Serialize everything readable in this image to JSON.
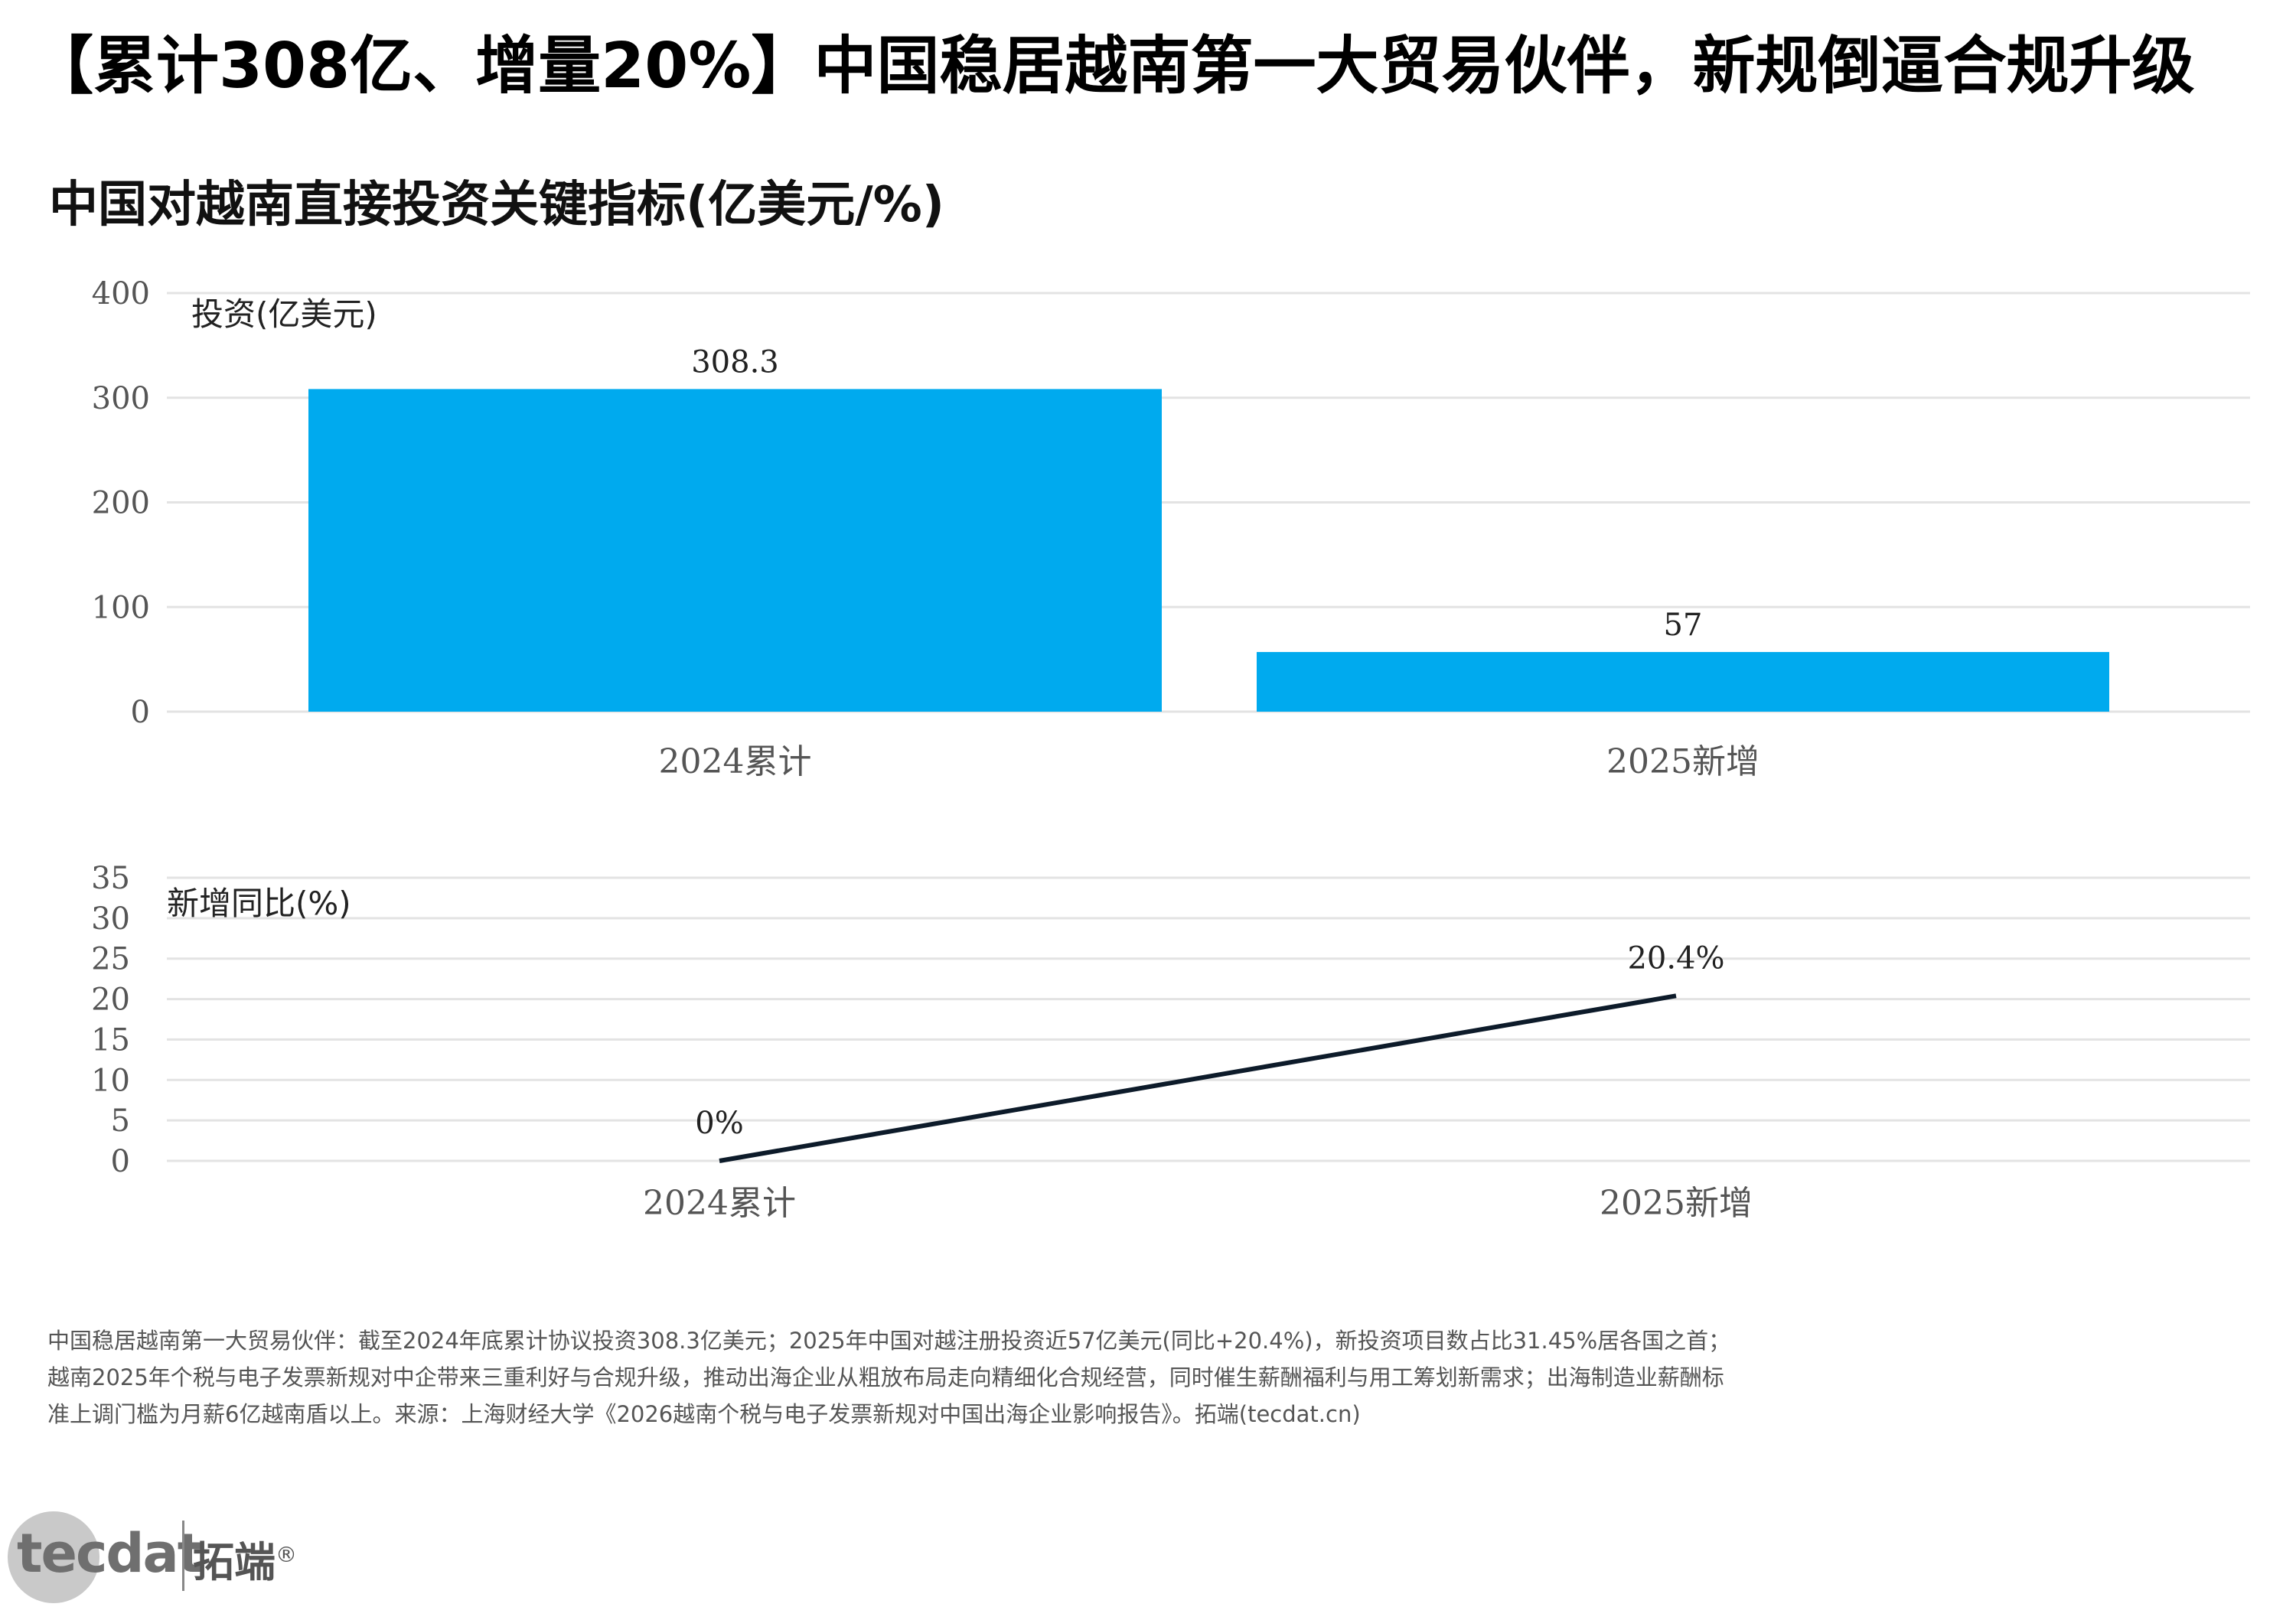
{
  "headline": "【累计308亿、增量20%】中国稳居越南第一大贸易伙伴，新规倒逼合规升级",
  "subtitle": "中国对越南直接投资关键指标(亿美元/%)",
  "colors": {
    "bar": "#00aaee",
    "line": "#0d1b2a",
    "grid": "#e3e3e3"
  },
  "chart_data": [
    {
      "type": "bar",
      "title": "投资(亿美元)",
      "categories": [
        "2024累计",
        "2025新增"
      ],
      "values": [
        308.3,
        57
      ],
      "value_labels": [
        "308.3",
        "57"
      ],
      "ylim": [
        0,
        400
      ],
      "yticks": [
        0,
        100,
        200,
        300,
        400
      ],
      "grid": true
    },
    {
      "type": "line",
      "title": "新增同比(%)",
      "categories": [
        "2024累计",
        "2025新增"
      ],
      "values": [
        0,
        20.4
      ],
      "value_labels": [
        "0%",
        "20.4%"
      ],
      "ylim": [
        0,
        35
      ],
      "yticks": [
        0,
        5,
        10,
        15,
        20,
        25,
        30,
        35
      ],
      "grid": true
    }
  ],
  "footnote": "中国稳居越南第一大贸易伙伴：截至2024年底累计协议投资308.3亿美元；2025年中国对越注册投资近57亿美元(同比+20.4%)，新投资项目数占比31.45%居各国之首；越南2025年个税与电子发票新规对中企带来三重利好与合规升级，推动出海企业从粗放布局走向精细化合规经营，同时催生薪酬福利与用工筹划新需求；出海制造业薪酬标准上调门槛为月薪6亿越南盾以上。来源：上海财经大学《2026越南个税与电子发票新规对中国出海企业影响报告》。拓端(tecdat.cn)",
  "logo": {
    "wordmark": "tecdat",
    "brand": "拓端",
    "registered": "®"
  }
}
